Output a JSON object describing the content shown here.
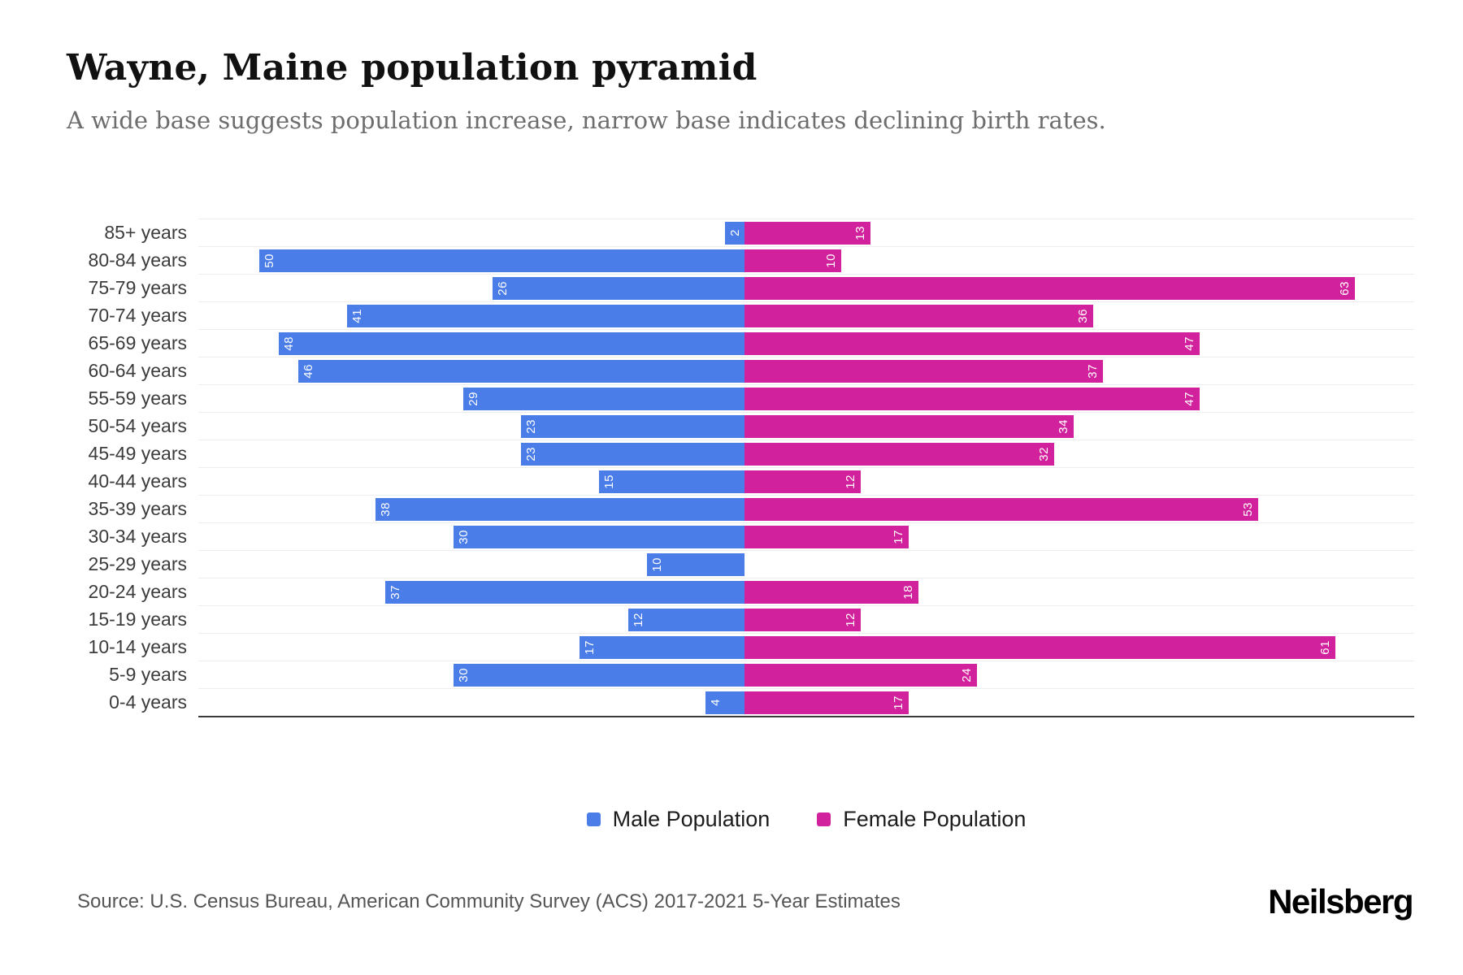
{
  "header": {
    "title": "Wayne, Maine population pyramid",
    "subtitle": "A wide base suggests population increase, narrow base indicates declining birth rates."
  },
  "chart_data": {
    "type": "bar",
    "orientation": "horizontal-pyramid",
    "title": "Wayne, Maine population pyramid",
    "subtitle": "A wide base suggests population increase, narrow base indicates declining birth rates.",
    "categories": [
      "85+ years",
      "80-84 years",
      "75-79 years",
      "70-74 years",
      "65-69 years",
      "60-64 years",
      "55-59 years",
      "50-54 years",
      "45-49 years",
      "40-44 years",
      "35-39 years",
      "30-34 years",
      "25-29 years",
      "20-24 years",
      "15-19 years",
      "10-14 years",
      "5-9 years",
      "0-4 years"
    ],
    "series": [
      {
        "name": "Male Population",
        "color": "#4a7de8",
        "values": [
          2,
          50,
          26,
          41,
          48,
          46,
          29,
          23,
          23,
          15,
          38,
          30,
          10,
          37,
          12,
          17,
          30,
          4
        ]
      },
      {
        "name": "Female Population",
        "color": "#d1219c",
        "values": [
          13,
          10,
          63,
          36,
          47,
          37,
          47,
          34,
          32,
          12,
          53,
          17,
          0,
          18,
          12,
          61,
          24,
          17
        ]
      }
    ],
    "layout": {
      "male_axis_max": 56.3,
      "female_axis_max": 69.1,
      "grid": "horizontal-light",
      "legend_position": "bottom",
      "value_labels": "inside-bar-end-rotated"
    },
    "xlabel": "",
    "ylabel": ""
  },
  "footer": {
    "source": "Source: U.S. Census Bureau, American Community Survey (ACS) 2017-2021 5-Year Estimates",
    "logo": "Neilsberg"
  }
}
